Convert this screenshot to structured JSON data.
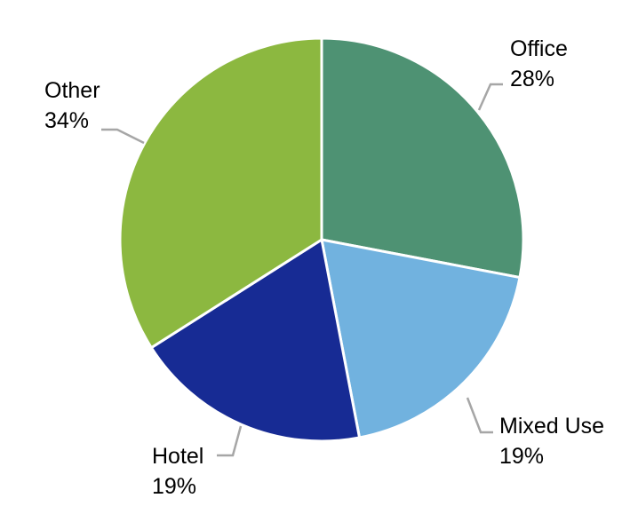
{
  "chart_data": {
    "type": "pie",
    "title": "",
    "start_angle_deg": 0,
    "direction": "clockwise",
    "legend": "none",
    "slices": [
      {
        "name": "Office",
        "value": 28,
        "label": "28%",
        "color": "#4e9273"
      },
      {
        "name": "Mixed Use",
        "value": 19,
        "label": "19%",
        "color": "#71b2df"
      },
      {
        "name": "Hotel",
        "value": 19,
        "label": "19%",
        "color": "#172b94"
      },
      {
        "name": "Other",
        "value": 34,
        "label": "34%",
        "color": "#8cb840"
      }
    ]
  }
}
